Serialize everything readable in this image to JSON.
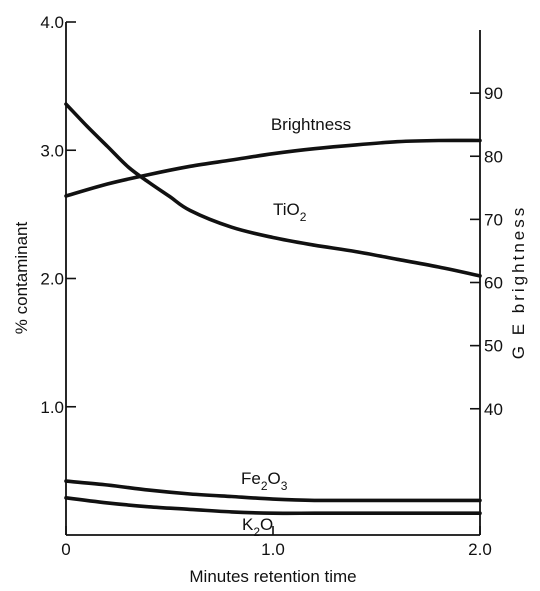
{
  "chart_data": {
    "type": "line",
    "xlabel": "Minutes retention time",
    "ylabel_left": "% contaminant",
    "ylabel_right": "G E brightness",
    "xlim": [
      0,
      2.0
    ],
    "ylim_left": [
      0,
      4.0
    ],
    "ylim_right": [
      20,
      100
    ],
    "x_ticks": [
      "0",
      "1.0",
      "2.0"
    ],
    "y_left_ticks": [
      "1.0",
      "2.0",
      "3.0",
      "4.0"
    ],
    "y_right_ticks": [
      "40",
      "50",
      "60",
      "70",
      "80",
      "90"
    ],
    "series": [
      {
        "name": "Brightness",
        "axis": "right",
        "x": [
          0,
          0.2,
          0.4,
          0.6,
          0.8,
          1.0,
          1.2,
          1.4,
          1.6,
          1.8,
          2.0
        ],
        "y": [
          73.7,
          75.6,
          77.1,
          78.4,
          79.4,
          80.4,
          81.2,
          81.8,
          82.3,
          82.5,
          82.5
        ]
      },
      {
        "name": "TiO",
        "name_sub": "2",
        "axis": "left",
        "x": [
          0,
          0.1,
          0.2,
          0.3,
          0.4,
          0.5,
          0.6,
          0.8,
          1.0,
          1.2,
          1.4,
          1.6,
          1.8,
          2.0
        ],
        "y": [
          3.36,
          3.19,
          3.03,
          2.87,
          2.75,
          2.64,
          2.53,
          2.4,
          2.32,
          2.26,
          2.21,
          2.15,
          2.09,
          2.02
        ]
      },
      {
        "name": "Fe",
        "name_sub": "2",
        "name_mid": "O",
        "name_sub2": "3",
        "axis": "left",
        "x": [
          0,
          0.2,
          0.4,
          0.6,
          0.8,
          1.0,
          1.2,
          1.4,
          1.6,
          1.8,
          2.0
        ],
        "y": [
          0.42,
          0.39,
          0.35,
          0.32,
          0.3,
          0.28,
          0.27,
          0.27,
          0.27,
          0.27,
          0.27
        ]
      },
      {
        "name": "K",
        "name_sub": "2",
        "name_mid": "O",
        "axis": "left",
        "x": [
          0,
          0.2,
          0.4,
          0.6,
          0.8,
          1.0,
          1.2,
          1.4,
          1.6,
          1.8,
          2.0
        ],
        "y": [
          0.29,
          0.25,
          0.22,
          0.2,
          0.18,
          0.17,
          0.17,
          0.17,
          0.17,
          0.17,
          0.17
        ]
      }
    ]
  }
}
